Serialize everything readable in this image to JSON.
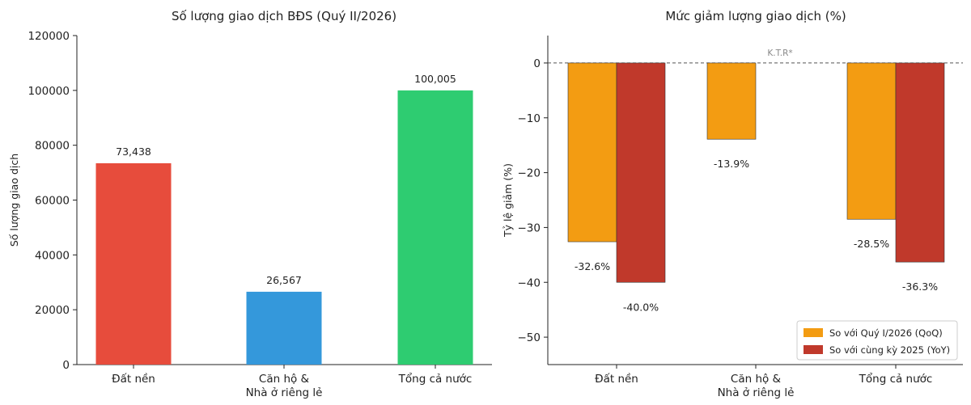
{
  "chart_data": [
    {
      "type": "bar",
      "title": "Số lượng giao dịch BĐS (Quý II/2026)",
      "ylabel": "Số lượng giao dịch",
      "ylim": [
        0,
        120000
      ],
      "yticks": [
        0,
        20000,
        40000,
        60000,
        80000,
        100000,
        120000
      ],
      "categories": [
        [
          "Đất nền"
        ],
        [
          "Căn hộ &",
          "Nhà ở riêng lẻ"
        ],
        [
          "Tổng cả nước"
        ]
      ],
      "values": [
        73438,
        26567,
        100005
      ],
      "value_labels": [
        "73,438",
        "26,567",
        "100,005"
      ],
      "colors": [
        "#E74C3C",
        "#3498DB",
        "#2ECC71"
      ]
    },
    {
      "type": "bar",
      "title": "Mức giảm lượng giao dịch (%)",
      "ylabel": "Tỷ lệ giảm (%)",
      "ylim": [
        -55,
        5
      ],
      "yticks": [
        0,
        -10,
        -20,
        -30,
        -40,
        -50
      ],
      "categories": [
        [
          "Đất nền"
        ],
        [
          "Căn hộ &",
          "Nhà ở riêng lẻ"
        ],
        [
          "Tổng cả nước"
        ]
      ],
      "series": [
        {
          "name": "So với Quý I/2026 (QoQ)",
          "color": "#F39C12",
          "values": [
            -32.6,
            -13.9,
            -28.5
          ],
          "value_labels": [
            "-32.6%",
            "-13.9%",
            "-28.5%"
          ]
        },
        {
          "name": "So với cùng kỳ 2025 (YoY)",
          "color": "#C0392B",
          "values": [
            -40.0,
            null,
            -36.3
          ],
          "value_labels": [
            "-40.0%",
            "",
            "-36.3%"
          ]
        }
      ],
      "annotation": "K.T.R*",
      "reference_line": 0,
      "legend_position": "lower-right"
    }
  ]
}
